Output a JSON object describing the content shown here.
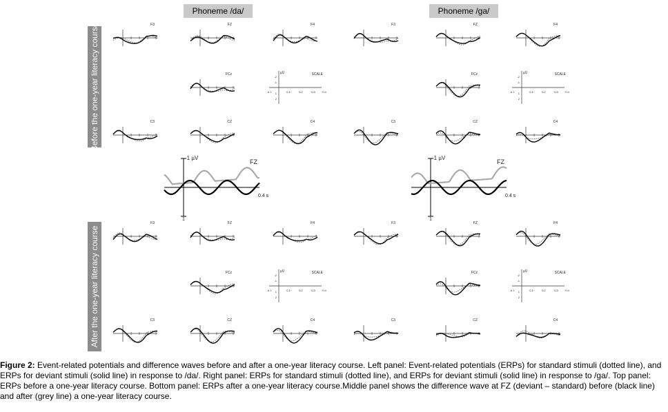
{
  "panels": {
    "left_title": "Phoneme /da/",
    "right_title": "Phoneme /ga/",
    "before_label": "Before the one-year literacy course",
    "after_label": "After the one-year literacy course"
  },
  "electrodes": {
    "F3": "F3",
    "FZ": "FZ",
    "F4": "F4",
    "FCZ": "FCz",
    "SCALE": "SCALE",
    "C3": "C3",
    "CZ": "CZ",
    "C4": "C4"
  },
  "scale_plot": {
    "unit": "µV",
    "y_ticks": [
      "-2",
      "-1",
      "1",
      "2"
    ],
    "x_ticks": [
      "-0.1",
      "0.1",
      "0.2",
      "0.3",
      "0.4"
    ]
  },
  "difference_plot": {
    "electrode": "FZ",
    "y_label": "-1 µV",
    "y_bottom": "1",
    "x_end_label": "0.4 s"
  },
  "caption": {
    "lead": "Figure 2:",
    "text": " Event-related potentials and difference waves before and after a one-year literacy course. Left panel: Event-related potentials (ERPs) for standard stimuli (dotted line), and ERPs for deviant stimuli (solid line) in response to /da/. Right panel: ERPs for standard stimuli (dotted line), and ERPs for deviant stimuli (solid line) in response to /ga/. Top panel: ERPs before a one-year literacy course. Bottom panel: ERPs after a one-year literacy course.Middle panel shows the difference wave at FZ (deviant – standard) before (black line) and after (grey line) a one-year literacy course."
  },
  "colors": {
    "label_band": "#8c8c8c",
    "title_band": "#c9c9c9",
    "after_line": "#aaaaaa"
  }
}
